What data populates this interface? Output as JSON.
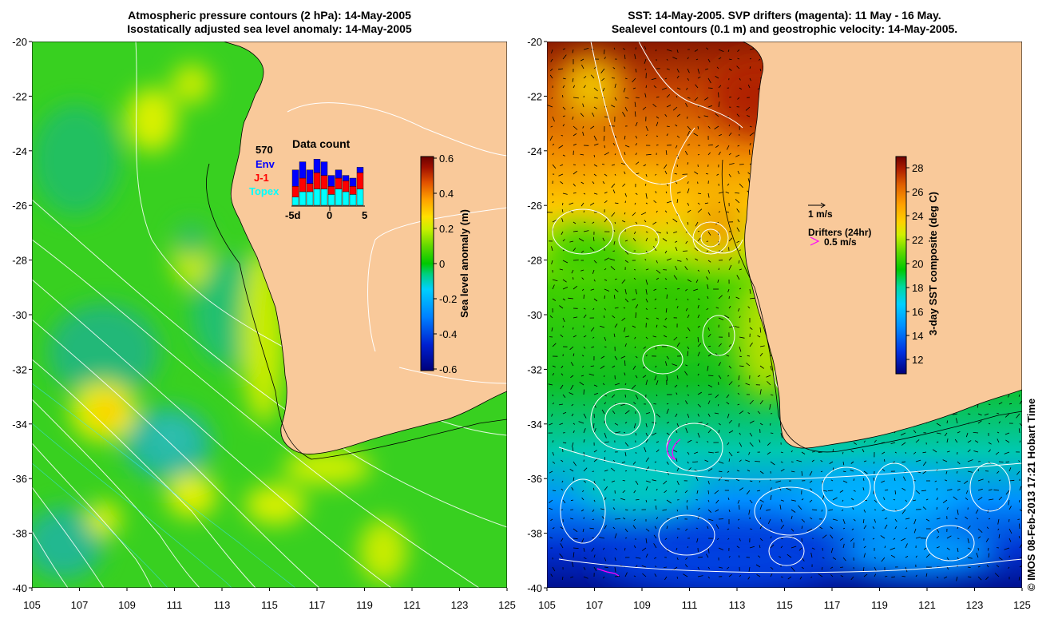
{
  "left_panel": {
    "title_line1": "Atmospheric pressure contours (2 hPa): 14-May-2005",
    "title_line2": "Isostatically adjusted sea level anomaly: 14-May-2005",
    "lat_ticks": [
      "-20",
      "-22",
      "-24",
      "-26",
      "-28",
      "-30",
      "-32",
      "-34",
      "-36",
      "-38",
      "-40"
    ],
    "lon_ticks": [
      "105",
      "107",
      "109",
      "111",
      "113",
      "115",
      "117",
      "119",
      "121",
      "123",
      "125"
    ],
    "colorbar": {
      "label": "Sea level anomaly (m)",
      "ticks": [
        "0.6",
        "0.4",
        "0.2",
        "0",
        "-0.2",
        "-0.4",
        "-0.6"
      ],
      "colors": [
        "#00007a",
        "#0020d0",
        "#0080ff",
        "#00d0ff",
        "#00d080",
        "#00c800",
        "#60d800",
        "#c8f000",
        "#ffe000",
        "#ffa000",
        "#e05000",
        "#a01000",
        "#6a0000"
      ]
    },
    "data_count": {
      "title": "Data count",
      "total": "570",
      "legend": [
        {
          "label": "Env",
          "color": "#0000ff"
        },
        {
          "label": "J-1",
          "color": "#ff0000"
        },
        {
          "label": "Topex",
          "color": "#00ffff"
        }
      ],
      "x_ticks": [
        "-5d",
        "0",
        "5"
      ],
      "days": [
        {
          "topex": 3,
          "j1": 4,
          "env": 6
        },
        {
          "topex": 5,
          "j1": 5,
          "env": 6
        },
        {
          "topex": 5,
          "j1": 3,
          "env": 5
        },
        {
          "topex": 6,
          "j1": 6,
          "env": 5
        },
        {
          "topex": 6,
          "j1": 5,
          "env": 5
        },
        {
          "topex": 4,
          "j1": 3,
          "env": 4
        },
        {
          "topex": 6,
          "j1": 4,
          "env": 3
        },
        {
          "topex": 5,
          "j1": 4,
          "env": 2
        },
        {
          "topex": 4,
          "j1": 3,
          "env": 3
        },
        {
          "topex": 6,
          "j1": 6,
          "env": 2
        }
      ]
    }
  },
  "right_panel": {
    "title_line1": "SST: 14-May-2005. SVP drifters (magenta): 11 May - 16 May.",
    "title_line2": "Sealevel contours (0.1 m) and geostrophic velocity: 14-May-2005.",
    "lat_ticks": [
      "-20",
      "-22",
      "-24",
      "-26",
      "-28",
      "-30",
      "-32",
      "-34",
      "-36",
      "-38",
      "-40"
    ],
    "lon_ticks": [
      "105",
      "107",
      "109",
      "111",
      "113",
      "115",
      "117",
      "119",
      "121",
      "123",
      "125"
    ],
    "velocity_key": "1 m/s",
    "drifters_title": "Drifters (24hr)",
    "drifters_key": "0.5 m/s",
    "drifter_color": "#ff00ff",
    "colorbar": {
      "label": "3-day SST composite (deg C)",
      "ticks": [
        "28",
        "26",
        "24",
        "22",
        "20",
        "18",
        "16",
        "14",
        "12"
      ],
      "colors": [
        "#00007a",
        "#0030e0",
        "#0090ff",
        "#00d0ff",
        "#00d8a0",
        "#00c800",
        "#60d800",
        "#d0f000",
        "#ffd000",
        "#ffa000",
        "#e06000",
        "#b02000",
        "#700000"
      ]
    }
  },
  "credit": "© IMOS 08-Feb-2013 17:21 Hobart Time",
  "land_color": "#f9c99a"
}
